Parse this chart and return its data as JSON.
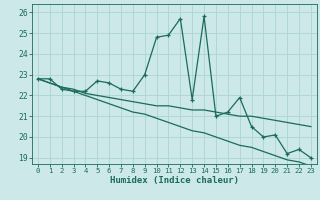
{
  "title": "",
  "xlabel": "Humidex (Indice chaleur)",
  "bg_color": "#cce8e8",
  "line_color": "#1a6b5a",
  "grid_color": "#aad4d0",
  "xlim": [
    -0.5,
    23.5
  ],
  "ylim": [
    18.7,
    26.4
  ],
  "yticks": [
    19,
    20,
    21,
    22,
    23,
    24,
    25,
    26
  ],
  "xticks": [
    0,
    1,
    2,
    3,
    4,
    5,
    6,
    7,
    8,
    9,
    10,
    11,
    12,
    13,
    14,
    15,
    16,
    17,
    18,
    19,
    20,
    21,
    22,
    23
  ],
  "series1": [
    22.8,
    22.8,
    22.3,
    22.2,
    22.2,
    22.7,
    22.6,
    22.3,
    22.2,
    23.0,
    24.8,
    24.9,
    25.7,
    21.8,
    25.8,
    21.0,
    21.2,
    21.9,
    20.5,
    20.0,
    20.1,
    19.2,
    19.4,
    19.0
  ],
  "series2": [
    22.8,
    22.6,
    22.4,
    22.3,
    22.1,
    22.0,
    21.9,
    21.8,
    21.7,
    21.6,
    21.5,
    21.5,
    21.4,
    21.3,
    21.3,
    21.2,
    21.1,
    21.0,
    21.0,
    20.9,
    20.8,
    20.7,
    20.6,
    20.5
  ],
  "series3": [
    22.8,
    22.6,
    22.4,
    22.2,
    22.0,
    21.8,
    21.6,
    21.4,
    21.2,
    21.1,
    20.9,
    20.7,
    20.5,
    20.3,
    20.2,
    20.0,
    19.8,
    19.6,
    19.5,
    19.3,
    19.1,
    18.9,
    18.8,
    18.6
  ]
}
